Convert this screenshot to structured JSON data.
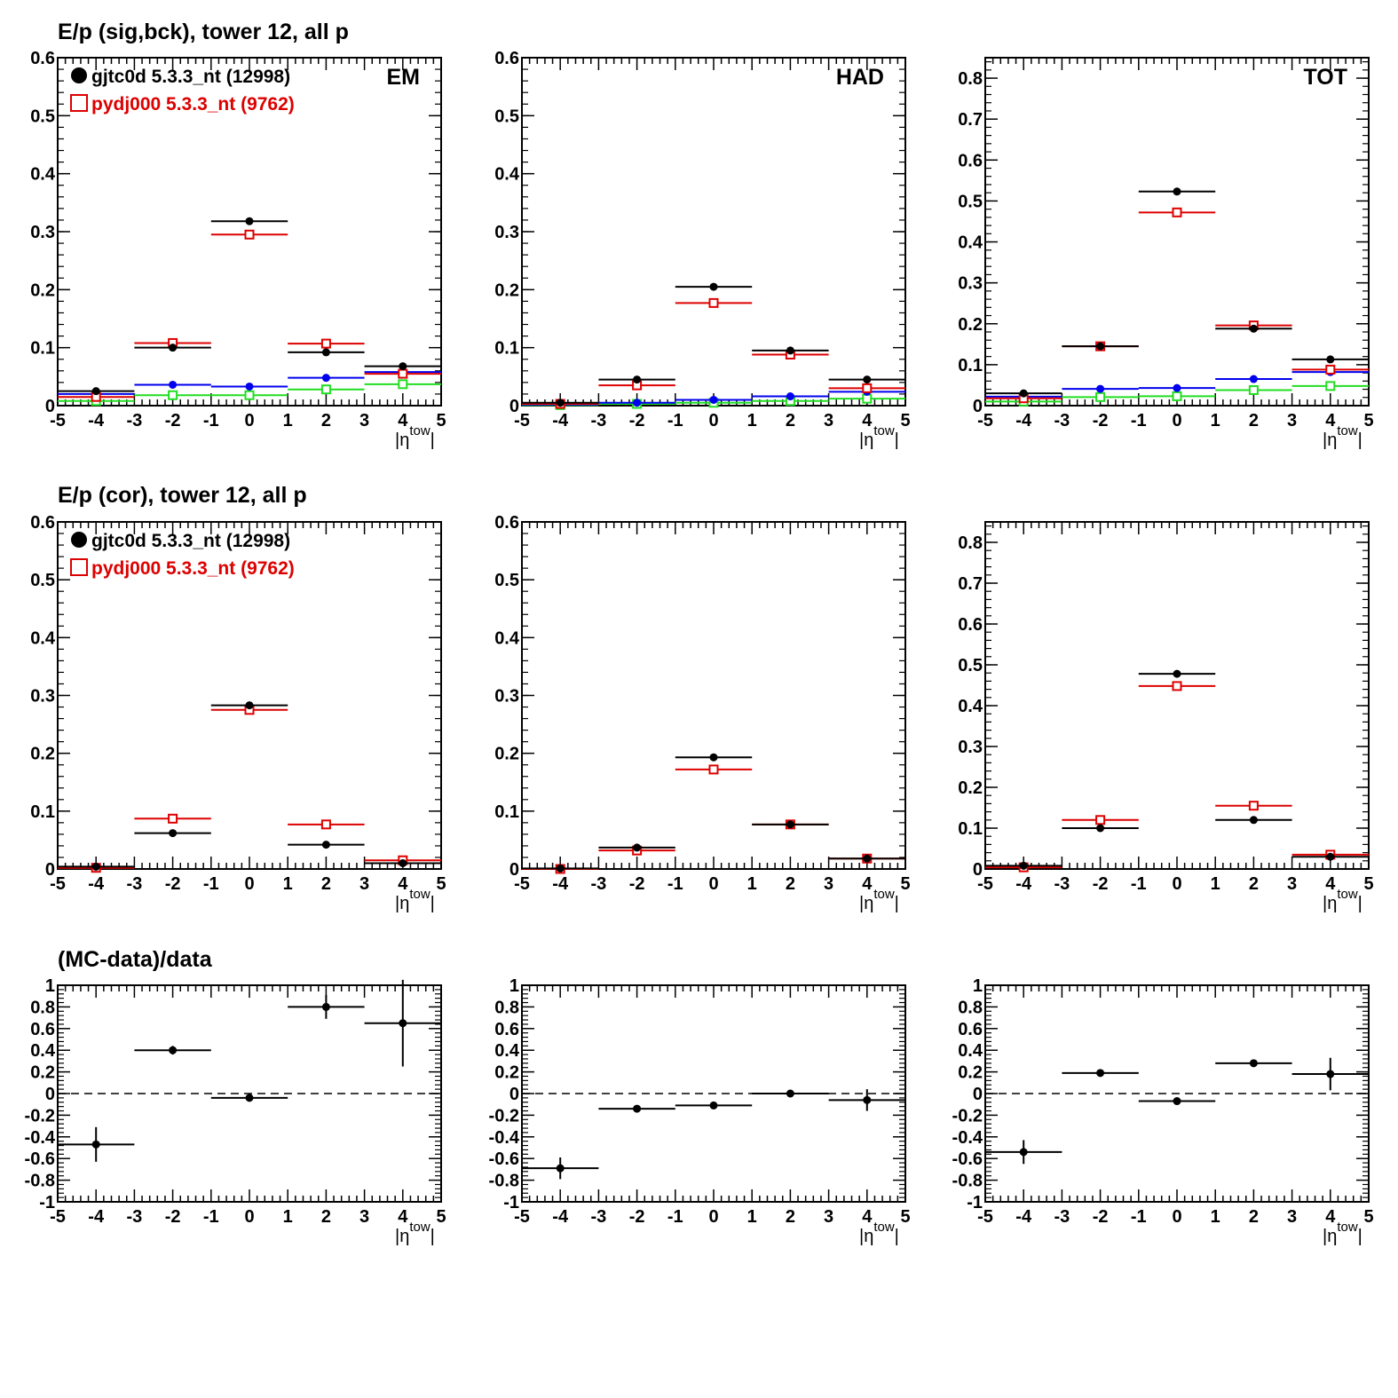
{
  "figure": {
    "row_titles": [
      "E/p (sig,bck), tower 12, all p",
      "E/p (cor), tower 12, all p",
      "(MC-data)/data"
    ],
    "axis_label": "|η",
    "axis_label_sup": "tow",
    "axis_label_end": "|",
    "legend": [
      {
        "label": "gjtc0d 5.3.3_nt (12998)",
        "marker": "filled-circle",
        "color": "#000000"
      },
      {
        "label": "pydj000 5.3.3_nt (9762)",
        "marker": "open-square",
        "color": "#dd0000"
      }
    ],
    "colors": {
      "data": "#000000",
      "mc": "#dd0000",
      "blue": "#0000ee",
      "green": "#22dd22",
      "magenta": "#cc00cc"
    }
  },
  "chart_data": [
    {
      "type": "scatter",
      "row": 0,
      "col": 0,
      "corner_label": "EM",
      "x": [
        -4,
        -2,
        0,
        2,
        4
      ],
      "x_halfwidth": 1,
      "xlim": [
        -5,
        5
      ],
      "ylim": [
        0,
        0.6
      ],
      "yticks": [
        0,
        0.1,
        0.2,
        0.3,
        0.4,
        0.5,
        0.6
      ],
      "series": [
        {
          "marker": "filled-circle",
          "color": "#000000",
          "values": [
            0.025,
            0.1,
            0.318,
            0.092,
            0.068
          ]
        },
        {
          "marker": "open-square",
          "color": "#dd0000",
          "values": [
            0.015,
            0.108,
            0.295,
            0.107,
            0.055
          ]
        },
        {
          "marker": "filled-circle",
          "color": "#0000ee",
          "values": [
            0.02,
            0.036,
            0.033,
            0.048,
            0.058
          ]
        },
        {
          "marker": "open-square",
          "color": "#22dd22",
          "values": [
            0.008,
            0.018,
            0.018,
            0.028,
            0.037
          ]
        }
      ]
    },
    {
      "type": "scatter",
      "row": 0,
      "col": 1,
      "corner_label": "HAD",
      "x": [
        -4,
        -2,
        0,
        2,
        4
      ],
      "x_halfwidth": 1,
      "xlim": [
        -5,
        5
      ],
      "ylim": [
        0,
        0.6
      ],
      "yticks": [
        0,
        0.1,
        0.2,
        0.3,
        0.4,
        0.5,
        0.6
      ],
      "series": [
        {
          "marker": "filled-circle",
          "color": "#000000",
          "values": [
            0.005,
            0.045,
            0.205,
            0.095,
            0.045
          ]
        },
        {
          "marker": "open-square",
          "color": "#dd0000",
          "values": [
            0.003,
            0.035,
            0.177,
            0.088,
            0.03
          ]
        },
        {
          "marker": "filled-circle",
          "color": "#0000ee",
          "values": [
            0.002,
            0.005,
            0.01,
            0.016,
            0.024
          ]
        },
        {
          "marker": "open-square",
          "color": "#22dd22",
          "values": [
            0.001,
            0.003,
            0.005,
            0.008,
            0.012
          ]
        }
      ]
    },
    {
      "type": "scatter",
      "row": 0,
      "col": 2,
      "corner_label": "TOT",
      "x": [
        -4,
        -2,
        0,
        2,
        4
      ],
      "x_halfwidth": 1,
      "xlim": [
        -5,
        5
      ],
      "ylim": [
        0,
        0.85
      ],
      "yticks": [
        0,
        0.1,
        0.2,
        0.3,
        0.4,
        0.5,
        0.6,
        0.7,
        0.8
      ],
      "series": [
        {
          "marker": "filled-circle",
          "color": "#000000",
          "values": [
            0.03,
            0.145,
            0.523,
            0.188,
            0.113
          ]
        },
        {
          "marker": "open-square",
          "color": "#dd0000",
          "values": [
            0.018,
            0.145,
            0.472,
            0.196,
            0.088
          ]
        },
        {
          "marker": "filled-circle",
          "color": "#0000ee",
          "values": [
            0.022,
            0.041,
            0.043,
            0.065,
            0.082
          ]
        },
        {
          "marker": "open-square",
          "color": "#22dd22",
          "values": [
            0.01,
            0.021,
            0.023,
            0.038,
            0.048
          ]
        }
      ]
    },
    {
      "type": "scatter",
      "row": 1,
      "col": 0,
      "corner_label": "",
      "x": [
        -4,
        -2,
        0,
        2,
        4
      ],
      "x_halfwidth": 1,
      "xlim": [
        -5,
        5
      ],
      "ylim": [
        0,
        0.6
      ],
      "yticks": [
        0,
        0.1,
        0.2,
        0.3,
        0.4,
        0.5,
        0.6
      ],
      "series": [
        {
          "marker": "filled-circle",
          "color": "#000000",
          "values": [
            0.004,
            0.062,
            0.283,
            0.042,
            0.01
          ]
        },
        {
          "marker": "open-square",
          "color": "#dd0000",
          "values": [
            0.002,
            0.087,
            0.275,
            0.077,
            0.015
          ]
        }
      ]
    },
    {
      "type": "scatter",
      "row": 1,
      "col": 1,
      "corner_label": "",
      "x": [
        -4,
        -2,
        0,
        2,
        4
      ],
      "x_halfwidth": 1,
      "xlim": [
        -5,
        5
      ],
      "ylim": [
        0,
        0.6
      ],
      "yticks": [
        0,
        0.1,
        0.2,
        0.3,
        0.4,
        0.5,
        0.6
      ],
      "series": [
        {
          "marker": "filled-circle",
          "color": "#000000",
          "values": [
            0.001,
            0.037,
            0.193,
            0.077,
            0.018
          ]
        },
        {
          "marker": "open-square",
          "color": "#dd0000",
          "values": [
            0.0,
            0.032,
            0.172,
            0.077,
            0.018
          ]
        }
      ]
    },
    {
      "type": "scatter",
      "row": 1,
      "col": 2,
      "corner_label": "",
      "x": [
        -4,
        -2,
        0,
        2,
        4
      ],
      "x_halfwidth": 1,
      "xlim": [
        -5,
        5
      ],
      "ylim": [
        0,
        0.85
      ],
      "yticks": [
        0,
        0.1,
        0.2,
        0.3,
        0.4,
        0.5,
        0.6,
        0.7,
        0.8
      ],
      "series": [
        {
          "marker": "filled-circle",
          "color": "#000000",
          "values": [
            0.008,
            0.1,
            0.478,
            0.12,
            0.03
          ]
        },
        {
          "marker": "open-square",
          "color": "#dd0000",
          "values": [
            0.004,
            0.12,
            0.448,
            0.155,
            0.035
          ]
        }
      ]
    },
    {
      "type": "scatter",
      "row": 2,
      "col": 0,
      "corner_label": "",
      "x": [
        -4,
        -2,
        0,
        2,
        4
      ],
      "x_halfwidth": 1,
      "xlim": [
        -5,
        5
      ],
      "ylim": [
        -1,
        1
      ],
      "yticks": [
        -1,
        -0.8,
        -0.6,
        -0.4,
        -0.2,
        0,
        0.2,
        0.4,
        0.6,
        0.8,
        1
      ],
      "reference_line": 0,
      "series": [
        {
          "marker": "filled-circle",
          "color": "#000000",
          "values": [
            -0.47,
            0.4,
            -0.04,
            0.8,
            0.65
          ],
          "errors": [
            0.16,
            0.04,
            0.02,
            0.11,
            0.4
          ]
        }
      ]
    },
    {
      "type": "scatter",
      "row": 2,
      "col": 1,
      "corner_label": "",
      "x": [
        -4,
        -2,
        0,
        2,
        4
      ],
      "x_halfwidth": 1,
      "xlim": [
        -5,
        5
      ],
      "ylim": [
        -1,
        1
      ],
      "yticks": [
        -1,
        -0.8,
        -0.6,
        -0.4,
        -0.2,
        0,
        0.2,
        0.4,
        0.6,
        0.8,
        1
      ],
      "reference_line": 0,
      "series": [
        {
          "marker": "filled-circle",
          "color": "#000000",
          "values": [
            -0.69,
            -0.14,
            -0.11,
            0.0,
            -0.06
          ],
          "errors": [
            0.1,
            0.02,
            0.01,
            0.02,
            0.1
          ]
        }
      ]
    },
    {
      "type": "scatter",
      "row": 2,
      "col": 2,
      "corner_label": "",
      "x": [
        -4,
        -2,
        0,
        2,
        4
      ],
      "x_halfwidth": 1,
      "xlim": [
        -5,
        5
      ],
      "ylim": [
        -1,
        1
      ],
      "yticks": [
        -1,
        -0.8,
        -0.6,
        -0.4,
        -0.2,
        0,
        0.2,
        0.4,
        0.6,
        0.8,
        1
      ],
      "reference_line": 0,
      "series": [
        {
          "marker": "filled-circle",
          "color": "#000000",
          "values": [
            -0.54,
            0.19,
            -0.07,
            0.28,
            0.18
          ],
          "errors": [
            0.11,
            0.02,
            0.01,
            0.03,
            0.15
          ]
        }
      ]
    }
  ]
}
